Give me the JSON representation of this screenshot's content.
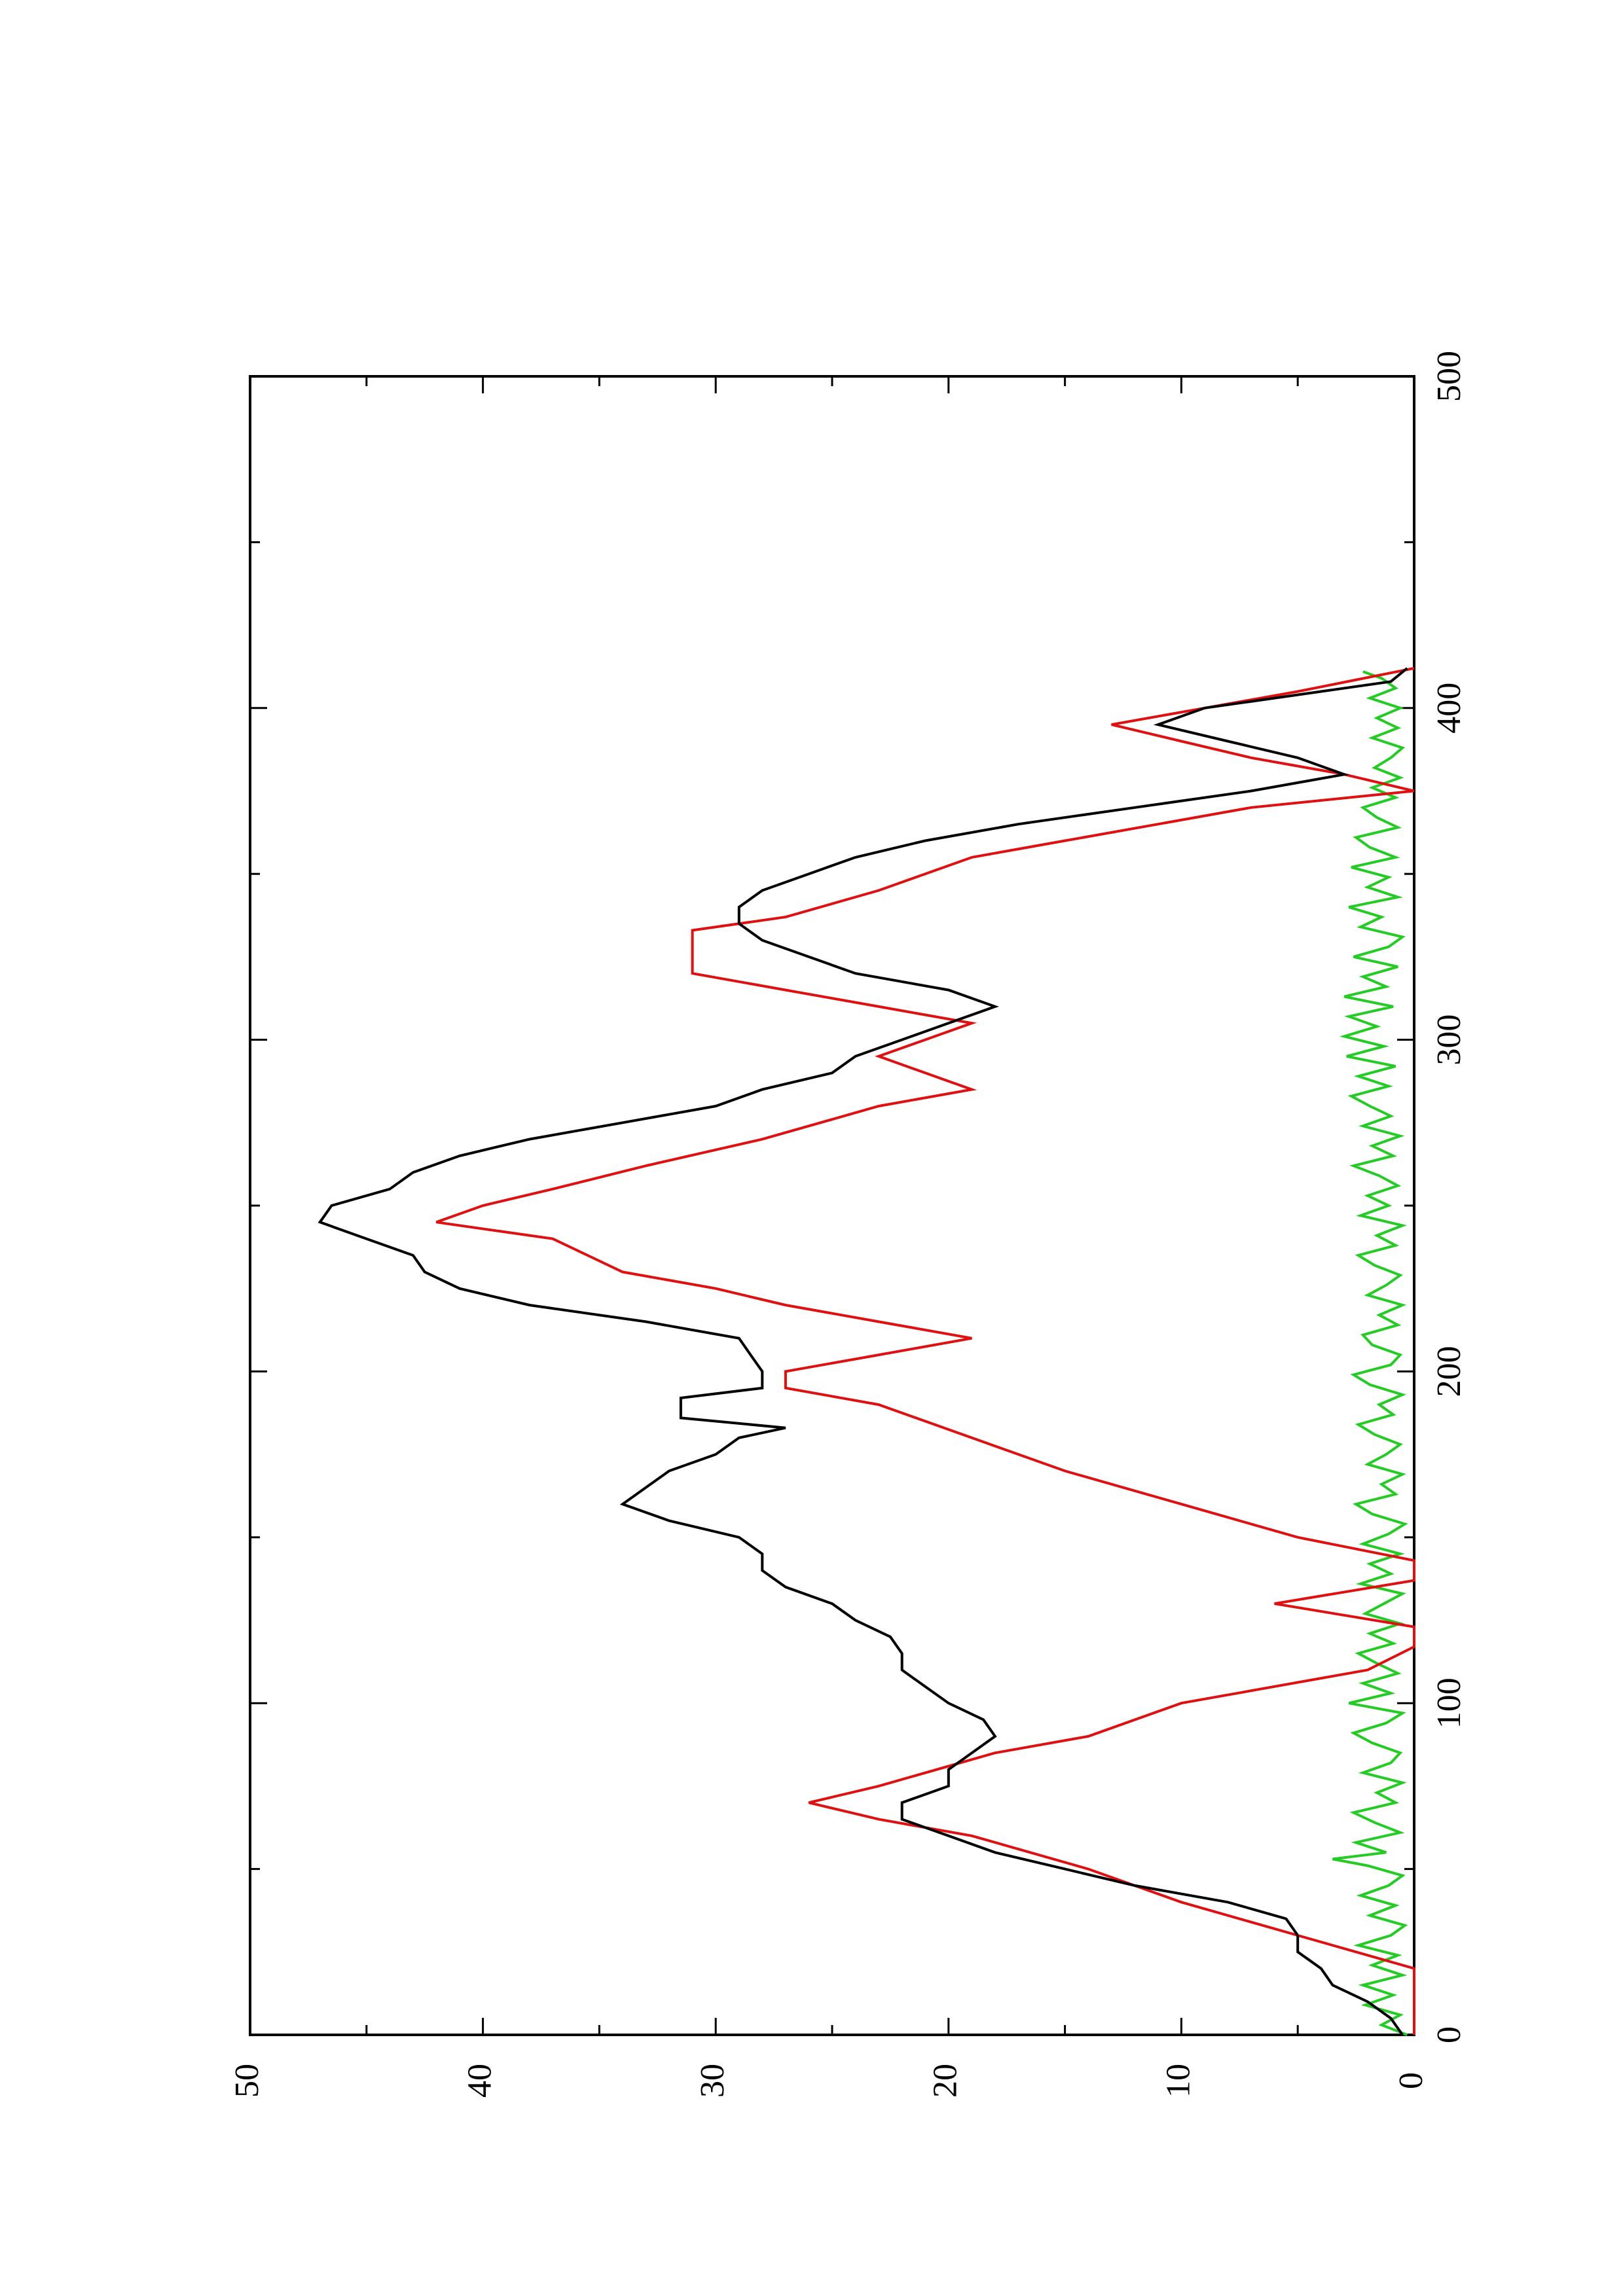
{
  "chart_data": {
    "type": "line",
    "orientation": "rotated-90-clockwise",
    "xlim": [
      0,
      500
    ],
    "ylim": [
      0,
      50
    ],
    "x_ticks": [
      0,
      100,
      200,
      300,
      400,
      500
    ],
    "x_minor_ticks": [
      50,
      150,
      250,
      350,
      450
    ],
    "y_ticks": [
      0,
      10,
      20,
      30,
      40,
      50
    ],
    "y_minor_ticks": [
      5,
      15,
      25,
      35,
      45
    ],
    "grid": false,
    "legend": "none",
    "title": "",
    "xlabel": "",
    "ylabel": "",
    "series": [
      {
        "color": "#000000",
        "style": "line",
        "points": [
          [
            0,
            0.5
          ],
          [
            5,
            1
          ],
          [
            10,
            2
          ],
          [
            15,
            3.5
          ],
          [
            20,
            4
          ],
          [
            25,
            5
          ],
          [
            30,
            5
          ],
          [
            35,
            5.5
          ],
          [
            40,
            8
          ],
          [
            45,
            12
          ],
          [
            50,
            15
          ],
          [
            55,
            18
          ],
          [
            60,
            20
          ],
          [
            65,
            22
          ],
          [
            70,
            22
          ],
          [
            75,
            20
          ],
          [
            80,
            20
          ],
          [
            85,
            19
          ],
          [
            90,
            18
          ],
          [
            95,
            18.5
          ],
          [
            100,
            20
          ],
          [
            105,
            21
          ],
          [
            110,
            22
          ],
          [
            115,
            22
          ],
          [
            120,
            22.5
          ],
          [
            125,
            24
          ],
          [
            130,
            25
          ],
          [
            135,
            27
          ],
          [
            140,
            28
          ],
          [
            145,
            28
          ],
          [
            150,
            29
          ],
          [
            155,
            32
          ],
          [
            160,
            34
          ],
          [
            165,
            33
          ],
          [
            170,
            32
          ],
          [
            175,
            30
          ],
          [
            180,
            29
          ],
          [
            183,
            27
          ],
          [
            186,
            31.5
          ],
          [
            192,
            31.5
          ],
          [
            195,
            28
          ],
          [
            200,
            28
          ],
          [
            205,
            28.5
          ],
          [
            210,
            29
          ],
          [
            215,
            33
          ],
          [
            220,
            38
          ],
          [
            225,
            41
          ],
          [
            230,
            42.5
          ],
          [
            235,
            43
          ],
          [
            240,
            45
          ],
          [
            245,
            47
          ],
          [
            250,
            46.5
          ],
          [
            255,
            44
          ],
          [
            260,
            43
          ],
          [
            265,
            41
          ],
          [
            270,
            38
          ],
          [
            275,
            34
          ],
          [
            280,
            30
          ],
          [
            285,
            28
          ],
          [
            290,
            25
          ],
          [
            295,
            24
          ],
          [
            300,
            22
          ],
          [
            305,
            20
          ],
          [
            310,
            18
          ],
          [
            315,
            20
          ],
          [
            320,
            24
          ],
          [
            325,
            26
          ],
          [
            330,
            28
          ],
          [
            335,
            29
          ],
          [
            340,
            29
          ],
          [
            345,
            28
          ],
          [
            350,
            26
          ],
          [
            355,
            24
          ],
          [
            360,
            21
          ],
          [
            365,
            17
          ],
          [
            370,
            12
          ],
          [
            375,
            7
          ],
          [
            380,
            3
          ],
          [
            385,
            5
          ],
          [
            390,
            8
          ],
          [
            395,
            11
          ],
          [
            400,
            9
          ],
          [
            405,
            4
          ],
          [
            408,
            1
          ],
          [
            412,
            0.3
          ]
        ]
      },
      {
        "color": "#e01010",
        "style": "step",
        "points": [
          [
            0,
            0
          ],
          [
            20,
            0
          ],
          [
            30,
            5
          ],
          [
            40,
            10
          ],
          [
            50,
            14
          ],
          [
            60,
            19
          ],
          [
            65,
            23
          ],
          [
            70,
            26
          ],
          [
            75,
            23
          ],
          [
            85,
            18
          ],
          [
            90,
            14
          ],
          [
            100,
            10
          ],
          [
            110,
            2
          ],
          [
            117,
            0
          ],
          [
            123,
            0
          ],
          [
            130,
            6
          ],
          [
            137,
            0
          ],
          [
            143,
            0
          ],
          [
            150,
            5
          ],
          [
            160,
            10
          ],
          [
            170,
            15
          ],
          [
            180,
            19
          ],
          [
            190,
            23
          ],
          [
            195,
            27
          ],
          [
            200,
            27
          ],
          [
            205,
            23
          ],
          [
            210,
            19
          ],
          [
            215,
            23
          ],
          [
            220,
            27
          ],
          [
            225,
            30
          ],
          [
            230,
            34
          ],
          [
            240,
            37
          ],
          [
            245,
            42
          ],
          [
            250,
            40
          ],
          [
            255,
            37
          ],
          [
            262,
            33
          ],
          [
            270,
            28
          ],
          [
            280,
            23
          ],
          [
            285,
            19
          ],
          [
            290,
            21
          ],
          [
            295,
            23
          ],
          [
            300,
            21
          ],
          [
            305,
            19
          ],
          [
            310,
            23
          ],
          [
            315,
            27
          ],
          [
            320,
            31
          ],
          [
            325,
            31
          ],
          [
            333,
            31
          ],
          [
            337,
            27
          ],
          [
            345,
            23
          ],
          [
            355,
            19
          ],
          [
            360,
            15
          ],
          [
            365,
            11
          ],
          [
            370,
            7
          ],
          [
            375,
            0
          ],
          [
            380,
            3
          ],
          [
            385,
            7
          ],
          [
            390,
            10
          ],
          [
            395,
            13
          ],
          [
            400,
            9
          ],
          [
            405,
            5
          ],
          [
            412,
            0
          ]
        ]
      },
      {
        "color": "#22cc22",
        "style": "noisy",
        "points": [
          [
            0,
            0.3
          ],
          [
            3,
            1.4
          ],
          [
            6,
            0.6
          ],
          [
            9,
            2.1
          ],
          [
            12,
            0.9
          ],
          [
            15,
            2.2
          ],
          [
            18,
            0.5
          ],
          [
            21,
            1.8
          ],
          [
            24,
            0.7
          ],
          [
            27,
            2.4
          ],
          [
            30,
            1
          ],
          [
            33,
            0.4
          ],
          [
            36,
            1.9
          ],
          [
            39,
            0.8
          ],
          [
            42,
            2.3
          ],
          [
            45,
            1.1
          ],
          [
            48,
            0.5
          ],
          [
            51,
            2
          ],
          [
            53,
            3.5
          ],
          [
            55,
            1.2
          ],
          [
            58,
            2.5
          ],
          [
            61,
            0.6
          ],
          [
            64,
            1.7
          ],
          [
            67,
            2.6
          ],
          [
            70,
            0.8
          ],
          [
            73,
            1.6
          ],
          [
            76,
            0.5
          ],
          [
            79,
            2.2
          ],
          [
            82,
            1
          ],
          [
            85,
            0.6
          ],
          [
            88,
            1.8
          ],
          [
            91,
            2.6
          ],
          [
            94,
            1.2
          ],
          [
            97,
            0.5
          ],
          [
            100,
            2.8
          ],
          [
            103,
            1
          ],
          [
            106,
            2.2
          ],
          [
            109,
            0.7
          ],
          [
            112,
            1.6
          ],
          [
            115,
            2.4
          ],
          [
            118,
            0.9
          ],
          [
            121,
            1.9
          ],
          [
            124,
            0.6
          ],
          [
            127,
            2.1
          ],
          [
            130,
            1.3
          ],
          [
            133,
            0.5
          ],
          [
            136,
            2.3
          ],
          [
            139,
            1
          ],
          [
            142,
            1.9
          ],
          [
            145,
            0.6
          ],
          [
            148,
            2.2
          ],
          [
            151,
            1.1
          ],
          [
            154,
            0.4
          ],
          [
            157,
            1.8
          ],
          [
            160,
            2.5
          ],
          [
            163,
            0.8
          ],
          [
            166,
            1.4
          ],
          [
            169,
            0.5
          ],
          [
            172,
            2
          ],
          [
            175,
            1.2
          ],
          [
            178,
            0.6
          ],
          [
            181,
            1.7
          ],
          [
            184,
            2.4
          ],
          [
            187,
            0.9
          ],
          [
            190,
            1.5
          ],
          [
            193,
            0.5
          ],
          [
            196,
            1.9
          ],
          [
            199,
            2.6
          ],
          [
            202,
            1
          ],
          [
            205,
            0.6
          ],
          [
            208,
            1.8
          ],
          [
            211,
            2.2
          ],
          [
            214,
            0.7
          ],
          [
            217,
            1.5
          ],
          [
            220,
            0.5
          ],
          [
            223,
            2
          ],
          [
            226,
            1.2
          ],
          [
            229,
            0.6
          ],
          [
            232,
            1.7
          ],
          [
            235,
            2.4
          ],
          [
            238,
            0.8
          ],
          [
            241,
            1.6
          ],
          [
            244,
            0.5
          ],
          [
            247,
            2.3
          ],
          [
            250,
            1.1
          ],
          [
            253,
            2
          ],
          [
            256,
            0.7
          ],
          [
            259,
            1.5
          ],
          [
            262,
            2.6
          ],
          [
            265,
            0.9
          ],
          [
            268,
            1.8
          ],
          [
            271,
            0.6
          ],
          [
            274,
            2.2
          ],
          [
            277,
            1
          ],
          [
            280,
            1.9
          ],
          [
            283,
            2.7
          ],
          [
            286,
            1.1
          ],
          [
            289,
            2.4
          ],
          [
            292,
            0.8
          ],
          [
            295,
            2.9
          ],
          [
            298,
            1.3
          ],
          [
            301,
            3
          ],
          [
            304,
            1.6
          ],
          [
            307,
            2.8
          ],
          [
            310,
            0.9
          ],
          [
            313,
            3
          ],
          [
            316,
            1.2
          ],
          [
            319,
            2.2
          ],
          [
            322,
            0.7
          ],
          [
            325,
            2.6
          ],
          [
            328,
            1.1
          ],
          [
            331,
            0.5
          ],
          [
            334,
            2.3
          ],
          [
            337,
            1.4
          ],
          [
            340,
            2.8
          ],
          [
            343,
            0.7
          ],
          [
            346,
            2
          ],
          [
            349,
            1.1
          ],
          [
            352,
            2.7
          ],
          [
            355,
            0.8
          ],
          [
            358,
            1.9
          ],
          [
            361,
            2.5
          ],
          [
            364,
            0.7
          ],
          [
            367,
            1.6
          ],
          [
            370,
            2.2
          ],
          [
            373,
            0.8
          ],
          [
            376,
            1.8
          ],
          [
            379,
            0.6
          ],
          [
            382,
            1.7
          ],
          [
            385,
            1
          ],
          [
            388,
            0.5
          ],
          [
            391,
            1.8
          ],
          [
            394,
            0.7
          ],
          [
            397,
            1.6
          ],
          [
            400,
            0.6
          ],
          [
            403,
            1.9
          ],
          [
            406,
            0.8
          ],
          [
            409,
            1.4
          ],
          [
            411,
            2.2
          ]
        ]
      }
    ]
  }
}
